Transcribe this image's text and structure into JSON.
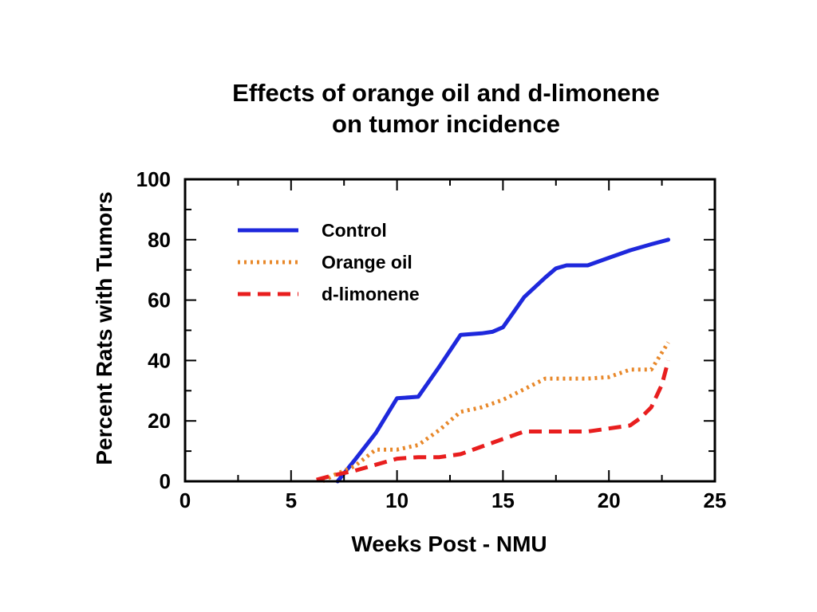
{
  "chart_data": {
    "type": "line",
    "title": [
      "Effects of orange oil and d-limonene",
      "on tumor incidence"
    ],
    "xlabel": "Weeks Post - NMU",
    "ylabel": "Percent Rats with Tumors",
    "xlim": [
      0,
      25
    ],
    "ylim": [
      0,
      100
    ],
    "xticks": [
      0,
      5,
      10,
      15,
      20,
      25
    ],
    "yticks": [
      0,
      20,
      40,
      60,
      80,
      100
    ],
    "minor_x_step": 5,
    "minor_y_step": 10,
    "grid": false,
    "legend_position": "top-left",
    "series": [
      {
        "name": "Control",
        "color": "#1e28dc",
        "dash": "solid",
        "x": [
          7.2,
          8.0,
          9.0,
          10.0,
          11.0,
          12.0,
          13.0,
          14.0,
          14.5,
          15.0,
          15.5,
          16.0,
          17.0,
          17.5,
          18.0,
          19.0,
          20.0,
          21.0,
          22.0,
          22.8
        ],
        "y": [
          0,
          7,
          16,
          27.5,
          28,
          38,
          48.5,
          49,
          49.5,
          51,
          56,
          61,
          67.5,
          70.5,
          71.5,
          71.5,
          74,
          76.5,
          78.5,
          80
        ]
      },
      {
        "name": "Orange oil",
        "color": "#e8882a",
        "dash": "dotted",
        "x": [
          6.5,
          7.0,
          8.0,
          9.0,
          10.0,
          11.0,
          12.0,
          13.0,
          14.0,
          15.0,
          16.0,
          17.0,
          18.0,
          19.0,
          20.0,
          21.0,
          22.0,
          22.8
        ],
        "y": [
          0,
          2,
          5,
          10.5,
          10.5,
          12,
          17,
          23,
          24.5,
          27,
          30.5,
          34,
          34,
          34,
          34.5,
          37,
          37,
          46
        ]
      },
      {
        "name": "d-limonene",
        "color": "#e81e1e",
        "dash": "dashed",
        "x": [
          6.2,
          7.0,
          8.0,
          9.0,
          10.0,
          11.0,
          12.0,
          13.0,
          14.0,
          15.0,
          16.0,
          17.0,
          18.0,
          19.0,
          20.0,
          21.0,
          21.5,
          22.0,
          22.5,
          22.8
        ],
        "y": [
          0.5,
          2,
          3.5,
          5.5,
          7.5,
          8,
          8,
          9,
          11.5,
          14,
          16.5,
          16.5,
          16.5,
          16.5,
          17.5,
          18.5,
          21,
          24.5,
          32,
          40
        ]
      }
    ]
  }
}
